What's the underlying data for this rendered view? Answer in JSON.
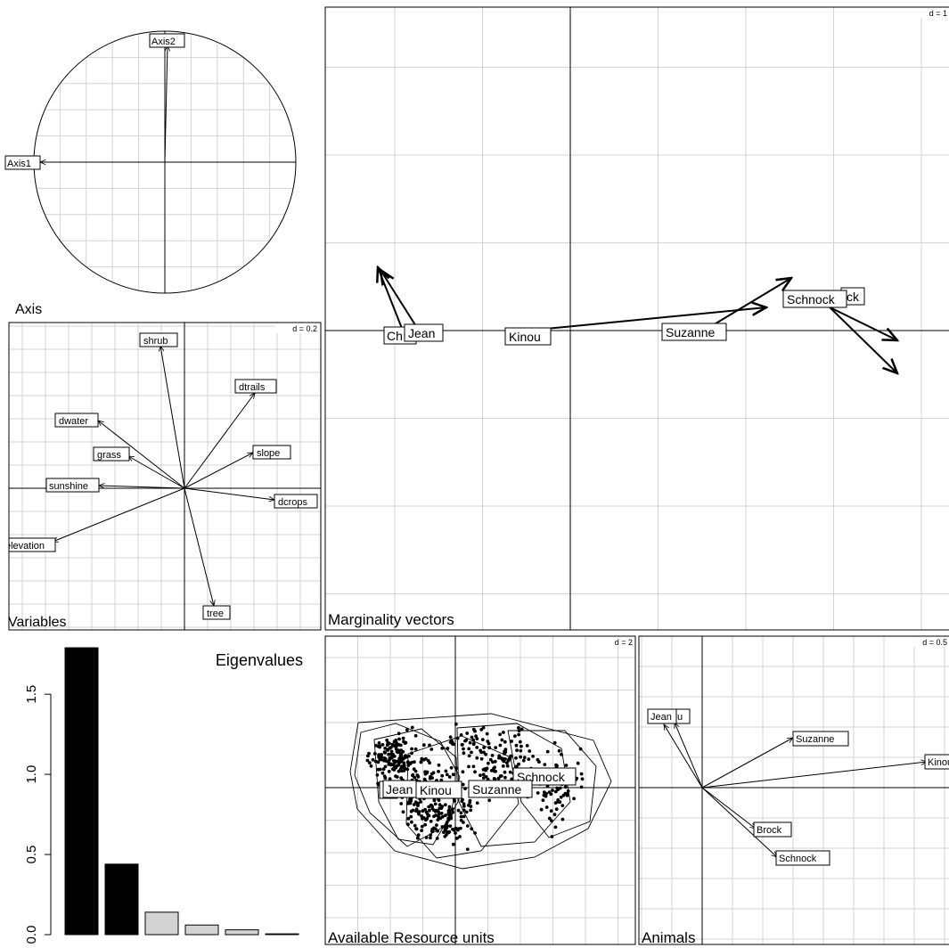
{
  "axis_panel": {
    "title": "Axis"
  },
  "variables_panel": {
    "title": "Variables",
    "scale": "d = 0.2"
  },
  "marginality_panel": {
    "title": "Marginality vectors",
    "scale": "d = 1"
  },
  "available_panel": {
    "title": "Available Resource units",
    "scale": "d = 2"
  },
  "animals_panel": {
    "title": "Animals",
    "scale": "d = 0.5"
  },
  "eigen_panel": {
    "title": "Eigenvalues"
  },
  "chart_data": [
    {
      "type": "arrows",
      "panel": "Axis",
      "correlation_circle": true,
      "vectors": [
        {
          "label": "Axis1",
          "x": -0.95,
          "y": 0.0
        },
        {
          "label": "Axis2",
          "x": 0.02,
          "y": 0.89
        }
      ]
    },
    {
      "type": "arrows",
      "panel": "Variables",
      "scale_label": "d = 0.2",
      "vectors": [
        {
          "label": "shrub",
          "x": -0.11,
          "y": 0.62
        },
        {
          "label": "dtrails",
          "x": 0.31,
          "y": 0.43
        },
        {
          "label": "dwater",
          "x": -0.37,
          "y": 0.31
        },
        {
          "label": "grass",
          "x": -0.23,
          "y": 0.14
        },
        {
          "label": "slope",
          "x": 0.3,
          "y": 0.16
        },
        {
          "label": "sunshine",
          "x": -0.37,
          "y": 0.01
        },
        {
          "label": "dcrops",
          "x": 0.39,
          "y": -0.05
        },
        {
          "label": "elevation",
          "x": -0.58,
          "y": -0.23
        },
        {
          "label": "tree",
          "x": 0.12,
          "y": -0.53
        }
      ]
    },
    {
      "type": "arrows",
      "panel": "Marginality vectors",
      "scale_label": "d = 1",
      "labels": [
        "Chris",
        "Jean",
        "Kinou",
        "Suzanne",
        "Schnock",
        "Brock"
      ],
      "visible_labels": [
        "Ch",
        "Jean",
        "Kinou",
        "Suzanne",
        "Schnock",
        "ck"
      ]
    },
    {
      "type": "scatter",
      "panel": "Available Resource units",
      "scale_label": "d = 2",
      "group_labels": [
        "C",
        "Jean",
        "Kinou",
        "Suzanne",
        "Schnock"
      ]
    },
    {
      "type": "arrows",
      "panel": "Animals",
      "scale_label": "d = 0.5",
      "vectors": [
        {
          "label": "Jean",
          "x": -0.2,
          "y": 0.82
        },
        {
          "label": "u",
          "x": -0.14,
          "y": 0.79
        },
        {
          "label": "Suzanne",
          "x": 0.52,
          "y": 0.57
        },
        {
          "label": "Kinou",
          "x": 1.27,
          "y": 0.31
        },
        {
          "label": "Brock",
          "x": 0.31,
          "y": -0.55
        },
        {
          "label": "Schnock",
          "x": 0.4,
          "y": -0.82
        }
      ]
    },
    {
      "type": "bar",
      "panel": "Eigenvalues",
      "title": "Eigenvalues",
      "values": [
        1.79,
        0.44,
        0.14,
        0.06,
        0.03,
        0.005
      ],
      "ylim": [
        0,
        1.85
      ],
      "yticks": [
        "0.0",
        "0.5",
        "1.0",
        "1.5"
      ],
      "bar_colors": [
        "#000000",
        "#000000",
        "#d3d3d3",
        "#d3d3d3",
        "#d3d3d3",
        "#d3d3d3"
      ]
    }
  ]
}
